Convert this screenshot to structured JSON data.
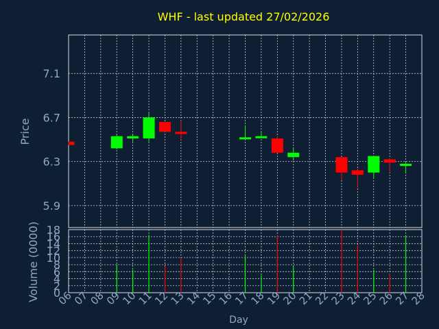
{
  "theme": {
    "background": "#0f1f33",
    "plot_border": "#d8dde6",
    "grid": "#c8ccd4",
    "title_color": "#ffff00",
    "axis_label_color": "#8fa8c8",
    "tick_label_color": "#8fa8c8",
    "up_color": "#00ff00",
    "down_color": "#ff0000"
  },
  "chart_data": [
    {
      "type": "candlestick",
      "title": "WHF - last updated 27/02/2026",
      "xlabel": "",
      "ylabel": "Price",
      "ylim": [
        5.7,
        7.45
      ],
      "yticks": [
        "5.9",
        "6.3",
        "6.7",
        "7.1"
      ],
      "grid": true,
      "x_domain": [
        6,
        28
      ],
      "candles": [
        {
          "day": 6,
          "open": 6.48,
          "close": 6.45,
          "high": 6.48,
          "low": 6.45
        },
        {
          "day": 9,
          "open": 6.42,
          "close": 6.53,
          "high": 6.54,
          "low": 6.41
        },
        {
          "day": 10,
          "open": 6.51,
          "close": 6.53,
          "high": 6.54,
          "low": 6.48
        },
        {
          "day": 11,
          "open": 6.51,
          "close": 6.7,
          "high": 6.74,
          "low": 6.48
        },
        {
          "day": 12,
          "open": 6.66,
          "close": 6.57,
          "high": 6.66,
          "low": 6.57
        },
        {
          "day": 13,
          "open": 6.57,
          "close": 6.55,
          "high": 6.67,
          "low": 6.5
        },
        {
          "day": 17,
          "open": 6.51,
          "close": 6.52,
          "high": 6.63,
          "low": 6.51
        },
        {
          "day": 18,
          "open": 6.52,
          "close": 6.53,
          "high": 6.57,
          "low": 6.52
        },
        {
          "day": 19,
          "open": 6.51,
          "close": 6.38,
          "high": 6.53,
          "low": 6.38
        },
        {
          "day": 20,
          "open": 6.34,
          "close": 6.38,
          "high": 6.43,
          "low": 6.31
        },
        {
          "day": 23,
          "open": 6.34,
          "close": 6.2,
          "high": 6.34,
          "low": 6.13
        },
        {
          "day": 24,
          "open": 6.22,
          "close": 6.18,
          "high": 6.24,
          "low": 6.06
        },
        {
          "day": 25,
          "open": 6.2,
          "close": 6.35,
          "high": 6.35,
          "low": 6.15
        },
        {
          "day": 26,
          "open": 6.32,
          "close": 6.29,
          "high": 6.33,
          "low": 6.2
        },
        {
          "day": 27,
          "open": 6.26,
          "close": 6.28,
          "high": 6.29,
          "low": 6.19
        }
      ]
    },
    {
      "type": "bar",
      "title": "",
      "xlabel": "Day",
      "ylabel": "Volume (0000)",
      "ylim": [
        0,
        18
      ],
      "yticks": [
        "0",
        "2",
        "4",
        "6",
        "8",
        "10",
        "12",
        "14",
        "16",
        "18"
      ],
      "grid": true,
      "x": [
        "06",
        "07",
        "08",
        "09",
        "10",
        "11",
        "12",
        "13",
        "14",
        "15",
        "16",
        "17",
        "18",
        "19",
        "20",
        "21",
        "22",
        "23",
        "24",
        "25",
        "26",
        "27",
        "28"
      ],
      "bars": [
        {
          "day": 6,
          "value": 0,
          "direction": "down"
        },
        {
          "day": 9,
          "value": 8,
          "direction": "up"
        },
        {
          "day": 10,
          "value": 6.5,
          "direction": "up"
        },
        {
          "day": 11,
          "value": 16.5,
          "direction": "up"
        },
        {
          "day": 12,
          "value": 7.5,
          "direction": "down"
        },
        {
          "day": 13,
          "value": 10,
          "direction": "down"
        },
        {
          "day": 17,
          "value": 10.5,
          "direction": "up"
        },
        {
          "day": 18,
          "value": 5,
          "direction": "up"
        },
        {
          "day": 19,
          "value": 16.5,
          "direction": "down"
        },
        {
          "day": 20,
          "value": 7.5,
          "direction": "up"
        },
        {
          "day": 23,
          "value": 18,
          "direction": "down"
        },
        {
          "day": 24,
          "value": 13.5,
          "direction": "down"
        },
        {
          "day": 25,
          "value": 6.5,
          "direction": "up"
        },
        {
          "day": 26,
          "value": 5.5,
          "direction": "down"
        },
        {
          "day": 27,
          "value": 16.5,
          "direction": "up"
        }
      ]
    }
  ]
}
